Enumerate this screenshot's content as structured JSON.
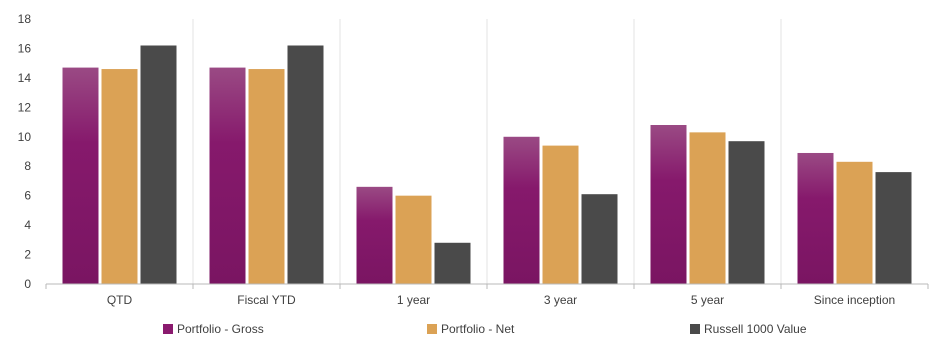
{
  "chart_data": {
    "type": "bar",
    "categories": [
      "QTD",
      "Fiscal YTD",
      "1 year",
      "3 year",
      "5 year",
      "Since inception"
    ],
    "series": [
      {
        "name": "Portfolio - Gross",
        "values": [
          14.7,
          14.7,
          6.6,
          10.0,
          10.8,
          8.9
        ],
        "color": "#8a1a6e"
      },
      {
        "name": "Portfolio - Net",
        "values": [
          14.6,
          14.6,
          6.0,
          9.4,
          10.3,
          8.3
        ],
        "color": "#dba255"
      },
      {
        "name": "Russell 1000 Value",
        "values": [
          16.2,
          16.2,
          2.8,
          6.1,
          9.7,
          7.6
        ],
        "color": "#4a4a4a"
      }
    ],
    "title": "",
    "xlabel": "",
    "ylabel": "",
    "ylim": [
      0,
      18
    ],
    "yticks": [
      0,
      2,
      4,
      6,
      8,
      10,
      12,
      14,
      16,
      18
    ],
    "grid": "vertical separators between categories",
    "legend_position": "bottom"
  }
}
